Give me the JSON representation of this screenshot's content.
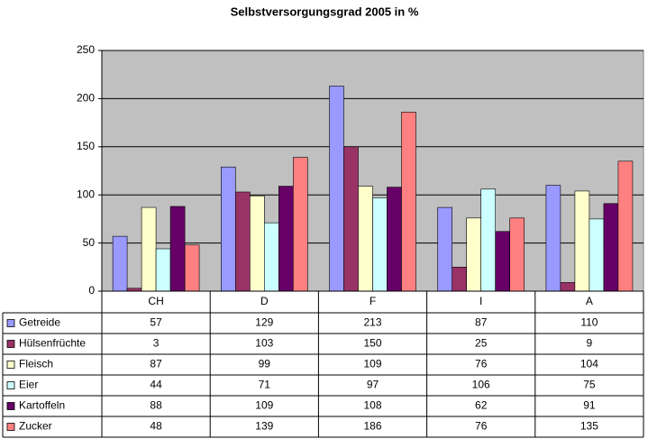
{
  "chart_data": {
    "type": "bar",
    "title": "Selbstversorgungsgrad 2005 in %",
    "categories": [
      "CH",
      "D",
      "F",
      "I",
      "A"
    ],
    "series": [
      {
        "name": "Getreide",
        "color": "#9999ff",
        "values": [
          57,
          129,
          213,
          87,
          110
        ]
      },
      {
        "name": "Hülsenfrüchte",
        "color": "#993366",
        "values": [
          3,
          103,
          150,
          25,
          9
        ]
      },
      {
        "name": "Fleisch",
        "color": "#ffffcc",
        "values": [
          87,
          99,
          109,
          76,
          104
        ]
      },
      {
        "name": "Eier",
        "color": "#ccffff",
        "values": [
          44,
          71,
          97,
          106,
          75
        ]
      },
      {
        "name": "Kartoffeln",
        "color": "#660066",
        "values": [
          88,
          109,
          108,
          62,
          91
        ]
      },
      {
        "name": "Zucker",
        "color": "#ff8080",
        "values": [
          48,
          139,
          186,
          76,
          135
        ]
      }
    ],
    "ylim": [
      0,
      250
    ],
    "yticks": [
      0,
      50,
      100,
      150,
      200,
      250
    ],
    "grid": true,
    "data_table": true
  }
}
